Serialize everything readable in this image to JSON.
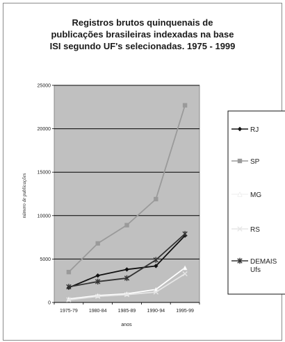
{
  "chart_data": {
    "type": "line",
    "title_lines": [
      "Registros brutos quinquenais de",
      "publicações brasileiras indexadas na base",
      "ISI segundo UF's selecionadas. 1975 - 1999"
    ],
    "xlabel": "anos",
    "ylabel": "número de publicações",
    "categories": [
      "1975-79",
      "1980-84",
      "1985-89",
      "1990-94",
      "1995-99"
    ],
    "ylim": [
      0,
      25000
    ],
    "yticks": [
      0,
      5000,
      10000,
      15000,
      20000,
      25000
    ],
    "grid": true,
    "legend_position": "right",
    "series": [
      {
        "name": "RJ",
        "values": [
          1700,
          3100,
          3800,
          4200,
          7700
        ],
        "color": "#111111",
        "marker": "diamond"
      },
      {
        "name": "SP",
        "values": [
          3500,
          6800,
          8900,
          11900,
          22700
        ],
        "color": "#9a9a9a",
        "marker": "square"
      },
      {
        "name": "MG",
        "values": [
          400,
          800,
          1000,
          1500,
          4000
        ],
        "color": "#ffffff",
        "marker": "triangle"
      },
      {
        "name": "RS",
        "values": [
          300,
          700,
          900,
          1200,
          3300
        ],
        "color": "#e6e6e6",
        "marker": "x"
      },
      {
        "name": "DEMAIS Ufs",
        "values": [
          1800,
          2400,
          2800,
          4900,
          7900
        ],
        "color": "#333333",
        "marker": "star"
      }
    ]
  }
}
